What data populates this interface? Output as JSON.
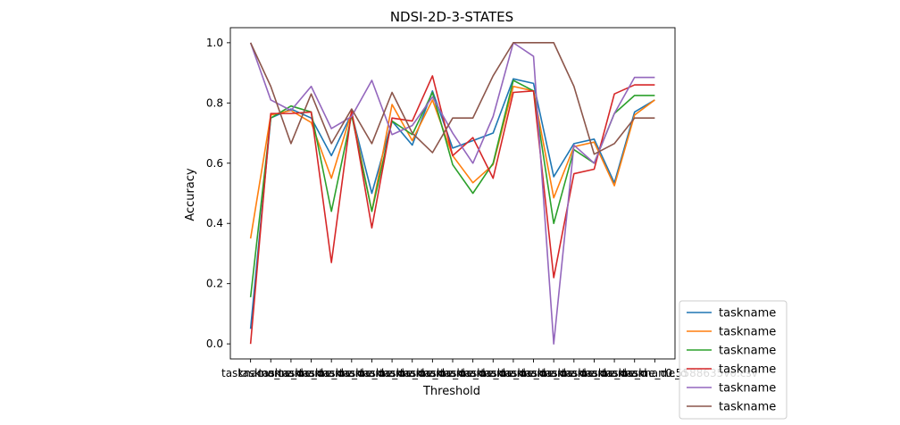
{
  "chart_data": {
    "type": "line",
    "title": "NDSI-2D-3-STATES",
    "xlabel": "Threshold",
    "ylabel": "Accuracy",
    "ylim": [
      -0.05,
      1.05
    ],
    "yticks": [
      "0.0",
      "0.2",
      "0.4",
      "0.6",
      "0.8",
      "1.0"
    ],
    "x": [
      0,
      1,
      2,
      3,
      4,
      5,
      6,
      7,
      8,
      9,
      10,
      11,
      12,
      13,
      14,
      15,
      16,
      17,
      18,
      19,
      20
    ],
    "x_tick_labels": [
      "taskname_",
      "taskname_d",
      "taskname_d",
      "taskname_d",
      "taskname_d",
      "taskname_d",
      "taskname_d",
      "taskname_d",
      "taskname_d",
      "taskname_d",
      "taskname_d",
      "taskname_d",
      "taskname_d",
      "taskname_d",
      "taskname_d",
      "taskname_d",
      "taskname_d",
      "taskname_d",
      "taskname_d",
      "taskname_d",
      "taskname_d"
    ],
    "x_tick_right_text": "0.5588635v0.csv",
    "grid": false,
    "legend_position": "lower-right-outside",
    "series": [
      {
        "name": "taskname",
        "color": "#1f77b4",
        "values": [
          0.05,
          0.75,
          0.78,
          0.75,
          0.625,
          0.765,
          0.5,
          0.74,
          0.66,
          0.84,
          0.65,
          0.675,
          0.7,
          0.88,
          0.865,
          0.555,
          0.665,
          0.68,
          0.535,
          0.77,
          0.81
        ]
      },
      {
        "name": "taskname",
        "color": "#ff7f0e",
        "values": [
          0.35,
          0.76,
          0.775,
          0.735,
          0.55,
          0.77,
          0.44,
          0.795,
          0.675,
          0.81,
          0.625,
          0.535,
          0.595,
          0.855,
          0.84,
          0.485,
          0.655,
          0.67,
          0.525,
          0.76,
          0.81
        ]
      },
      {
        "name": "taskname",
        "color": "#2ca02c",
        "values": [
          0.155,
          0.75,
          0.79,
          0.77,
          0.44,
          0.76,
          0.44,
          0.74,
          0.695,
          0.835,
          0.595,
          0.5,
          0.6,
          0.875,
          0.84,
          0.4,
          0.645,
          0.6,
          0.765,
          0.825,
          0.825
        ]
      },
      {
        "name": "taskname",
        "color": "#d62728",
        "values": [
          0.0,
          0.765,
          0.765,
          0.77,
          0.27,
          0.775,
          0.385,
          0.75,
          0.74,
          0.89,
          0.625,
          0.685,
          0.55,
          0.835,
          0.84,
          0.22,
          0.565,
          0.58,
          0.83,
          0.86,
          0.86
        ]
      },
      {
        "name": "taskname",
        "color": "#9467bd",
        "values": [
          1.0,
          0.81,
          0.775,
          0.855,
          0.715,
          0.755,
          0.875,
          0.695,
          0.725,
          0.82,
          0.7,
          0.6,
          0.755,
          1.0,
          0.955,
          0.0,
          0.66,
          0.6,
          0.765,
          0.885,
          0.885
        ]
      },
      {
        "name": "taskname",
        "color": "#8c564b",
        "values": [
          1.0,
          0.855,
          0.665,
          0.83,
          0.665,
          0.78,
          0.665,
          0.835,
          0.7,
          0.635,
          0.75,
          0.75,
          0.89,
          1.0,
          1.0,
          1.0,
          0.855,
          0.63,
          0.665,
          0.75,
          0.75
        ]
      }
    ]
  }
}
